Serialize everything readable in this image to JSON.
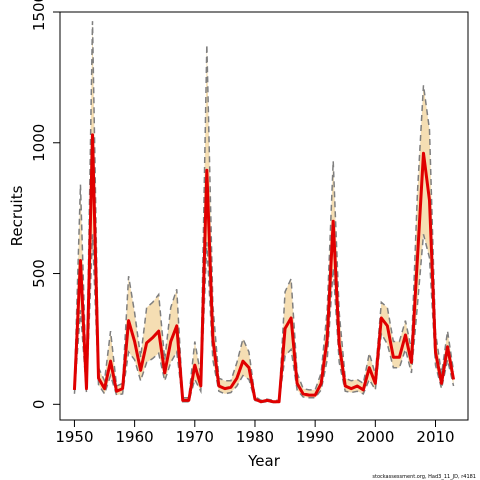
{
  "chart_data": {
    "type": "line",
    "title": "",
    "xlabel": "Year",
    "ylabel": "Recruits",
    "xlim": [
      1947.6,
      2015.4
    ],
    "ylim": [
      -60,
      1500
    ],
    "x_ticks": [
      1950,
      1960,
      1970,
      1980,
      1990,
      2000,
      2010
    ],
    "y_ticks": [
      0,
      500,
      1000,
      1500
    ],
    "grid": false,
    "legend": "none",
    "colors": {
      "median": "#e00000",
      "band_fill": "#f5deb3",
      "bound_line": "#7f7f7f",
      "frame": "#000000"
    },
    "source_note": "stockassessment.org, Had3_11_JD, r4181",
    "x": [
      1950,
      1951,
      1952,
      1953,
      1954,
      1955,
      1956,
      1957,
      1958,
      1959,
      1960,
      1961,
      1962,
      1963,
      1964,
      1965,
      1966,
      1967,
      1968,
      1969,
      1970,
      1971,
      1972,
      1973,
      1974,
      1975,
      1976,
      1977,
      1978,
      1979,
      1980,
      1981,
      1982,
      1983,
      1984,
      1985,
      1986,
      1987,
      1988,
      1989,
      1990,
      1991,
      1992,
      1993,
      1994,
      1995,
      1996,
      1997,
      1998,
      1999,
      2000,
      2001,
      2002,
      2003,
      2004,
      2005,
      2006,
      2007,
      2008,
      2009,
      2010,
      2011,
      2012,
      2013
    ],
    "series": [
      {
        "role": "estimate",
        "values": [
          55,
          550,
          60,
          1030,
          100,
          60,
          165,
          50,
          60,
          320,
          240,
          130,
          235,
          255,
          280,
          120,
          240,
          300,
          15,
          15,
          150,
          70,
          895,
          250,
          70,
          60,
          65,
          100,
          165,
          140,
          20,
          10,
          15,
          10,
          10,
          290,
          330,
          80,
          40,
          35,
          35,
          80,
          250,
          700,
          230,
          70,
          60,
          70,
          55,
          140,
          80,
          330,
          300,
          180,
          180,
          265,
          160,
          560,
          960,
          780,
          200,
          80,
          220,
          95
        ]
      },
      {
        "role": "upper",
        "values": [
          75,
          840,
          75,
          1465,
          140,
          90,
          280,
          70,
          80,
          490,
          350,
          180,
          370,
          390,
          420,
          170,
          370,
          440,
          25,
          25,
          240,
          110,
          1375,
          380,
          100,
          90,
          90,
          160,
          250,
          200,
          30,
          15,
          20,
          15,
          15,
          430,
          480,
          120,
          60,
          55,
          55,
          120,
          360,
          930,
          350,
          100,
          90,
          95,
          80,
          195,
          115,
          390,
          370,
          240,
          240,
          320,
          210,
          810,
          1220,
          1050,
          275,
          115,
          280,
          125
        ]
      },
      {
        "role": "lower",
        "values": [
          40,
          360,
          45,
          650,
          75,
          40,
          110,
          35,
          40,
          200,
          170,
          90,
          160,
          175,
          195,
          90,
          160,
          200,
          10,
          10,
          95,
          50,
          620,
          170,
          50,
          40,
          45,
          70,
          110,
          95,
          15,
          7,
          10,
          7,
          7,
          185,
          210,
          55,
          28,
          25,
          25,
          55,
          170,
          520,
          160,
          50,
          45,
          50,
          40,
          95,
          55,
          270,
          230,
          140,
          140,
          210,
          120,
          380,
          650,
          560,
          150,
          60,
          170,
          70
        ]
      }
    ]
  }
}
